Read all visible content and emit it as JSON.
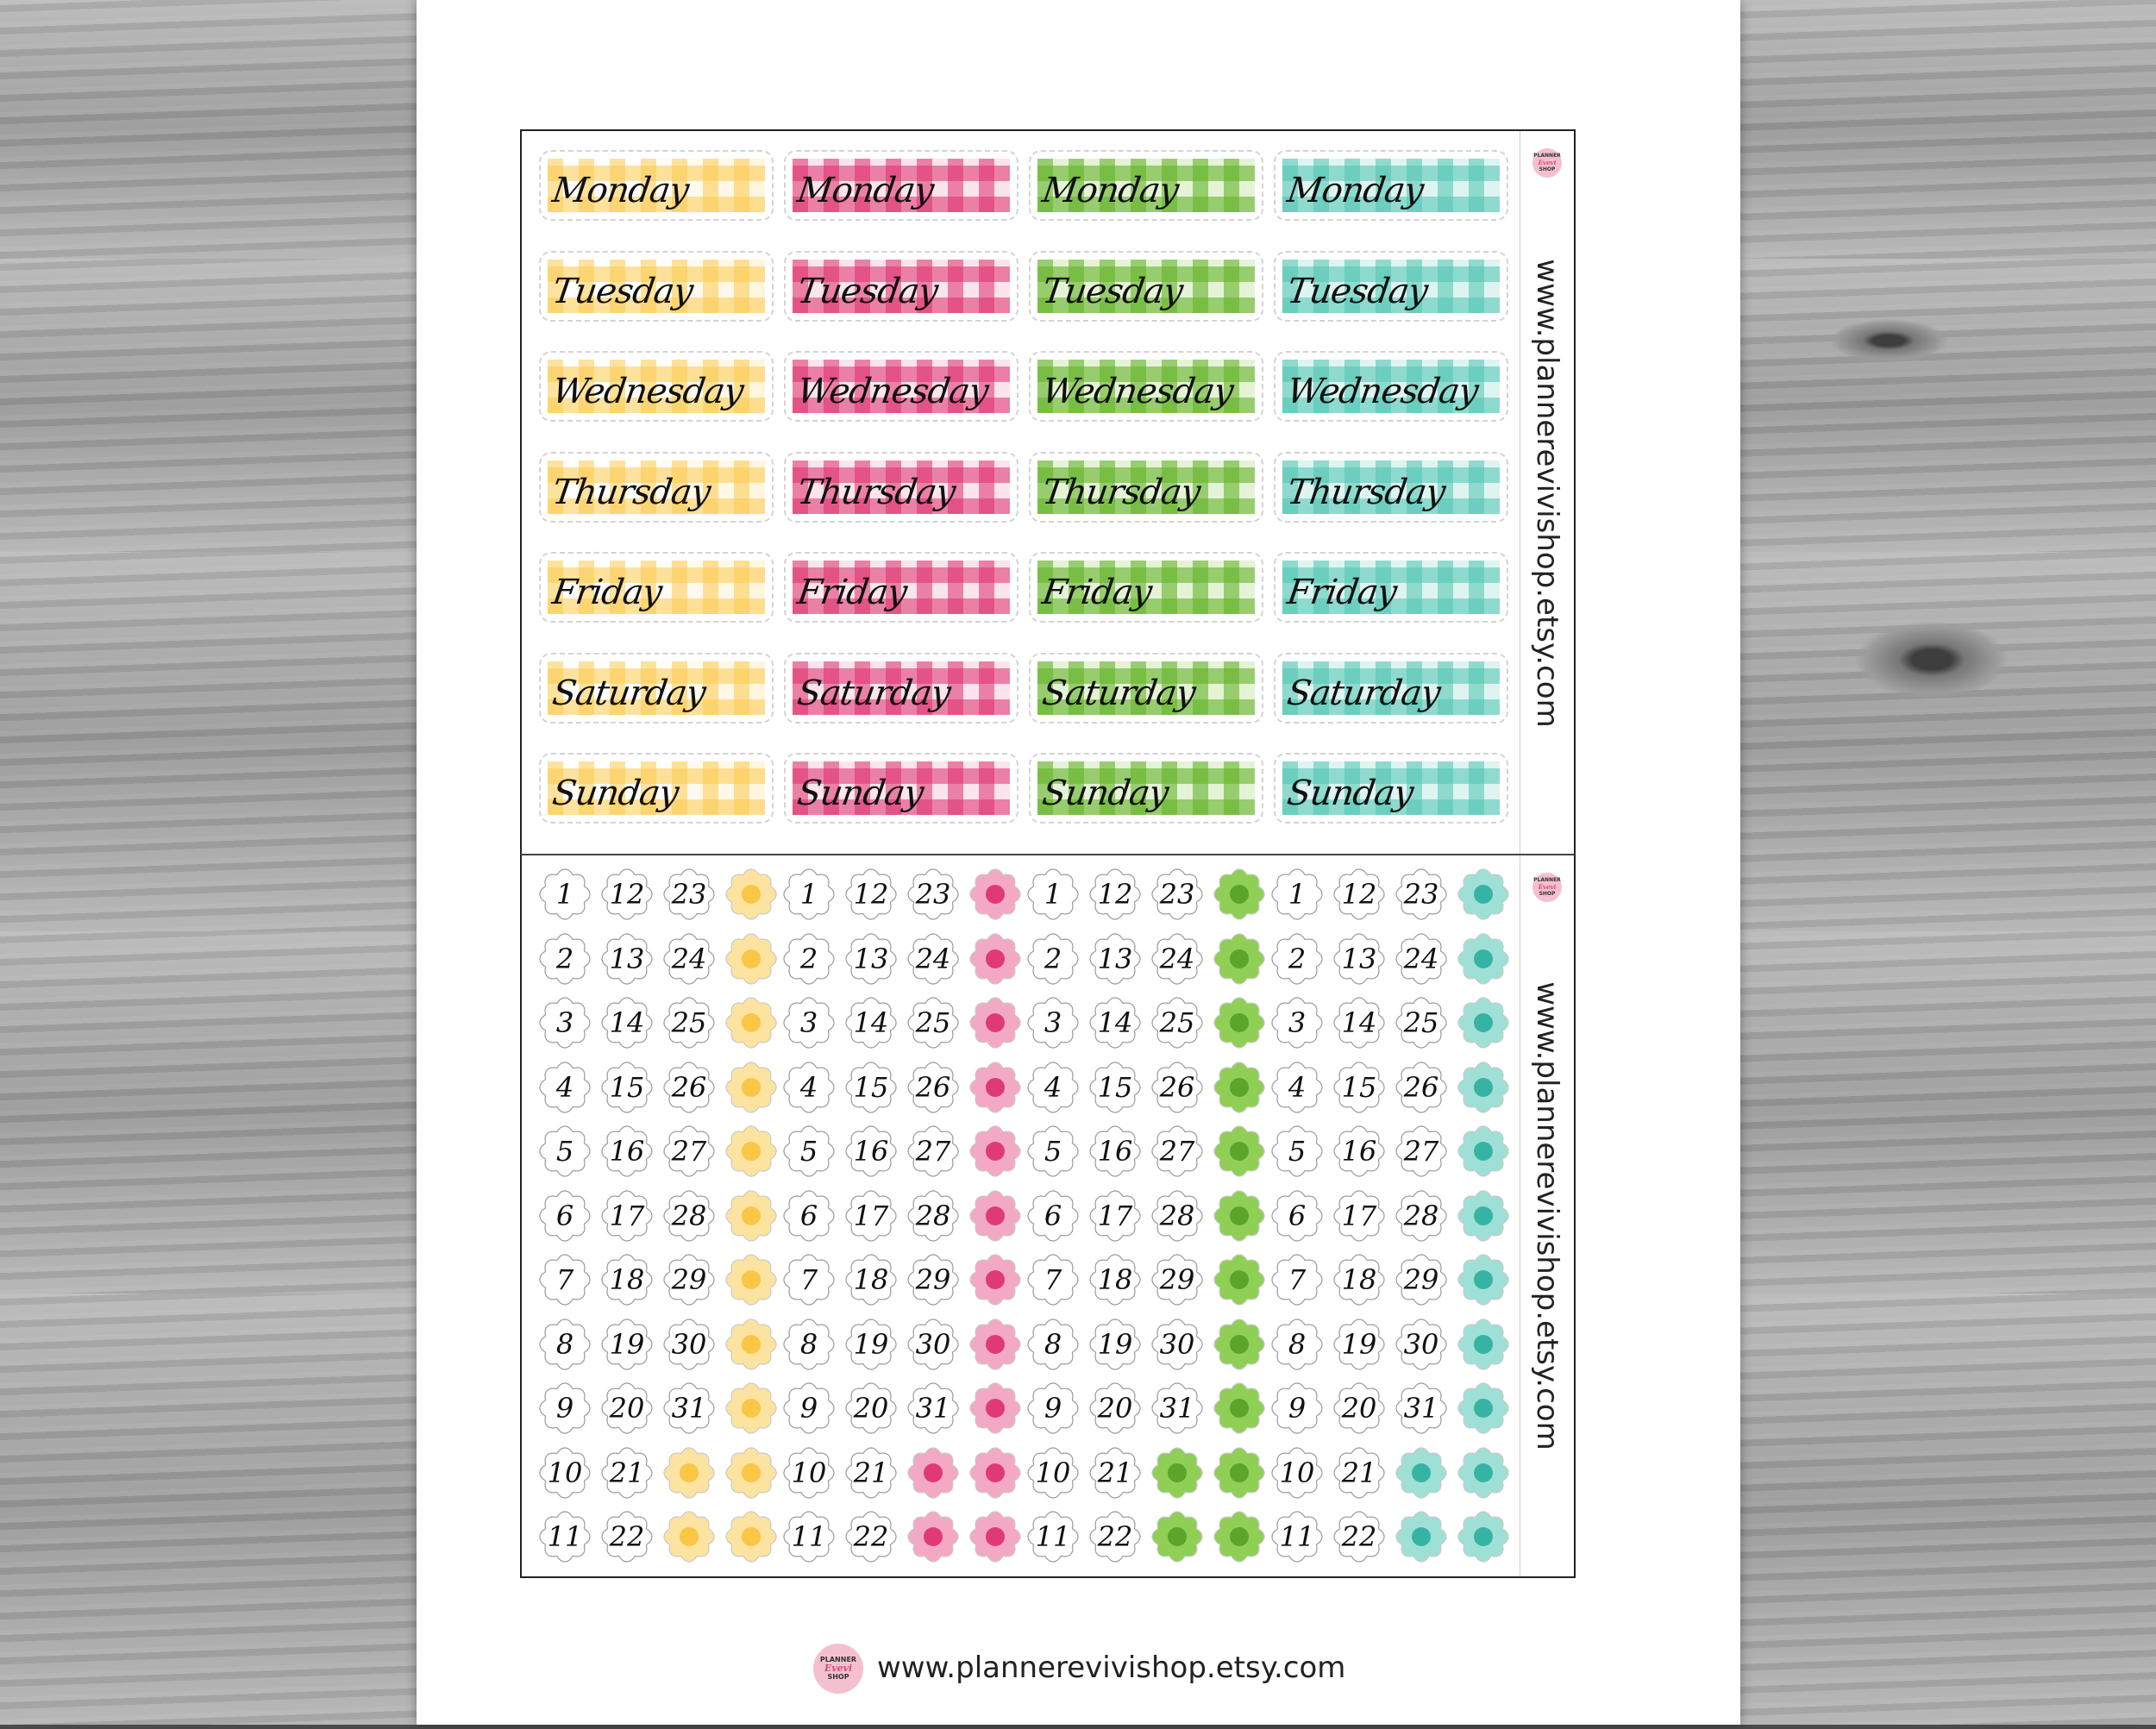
{
  "shop": {
    "url": "www.plannerevivishop.etsy.com",
    "logo_line1": "PLANNER",
    "logo_script": "Evevi",
    "logo_line3": "SHOP"
  },
  "days": [
    "Monday",
    "Tuesday",
    "Wednesday",
    "Thursday",
    "Friday",
    "Saturday",
    "Sunday"
  ],
  "color_themes": [
    {
      "name": "yellow",
      "hex": "#fcca4e",
      "center": "#f9c645"
    },
    {
      "name": "pink",
      "hex": "#de2e6c",
      "center": "#e03a74"
    },
    {
      "name": "green",
      "hex": "#64b428",
      "center": "#5aa52a"
    },
    {
      "name": "teal",
      "hex": "#4ec4b2",
      "center": "#37b3a3"
    }
  ],
  "date_columns": [
    [
      "1",
      "2",
      "3",
      "4",
      "5",
      "6",
      "7",
      "8",
      "9",
      "10",
      "11"
    ],
    [
      "12",
      "13",
      "14",
      "15",
      "16",
      "17",
      "18",
      "19",
      "20",
      "21",
      "22"
    ],
    [
      "23",
      "24",
      "25",
      "26",
      "27",
      "28",
      "29",
      "30",
      "31"
    ]
  ]
}
